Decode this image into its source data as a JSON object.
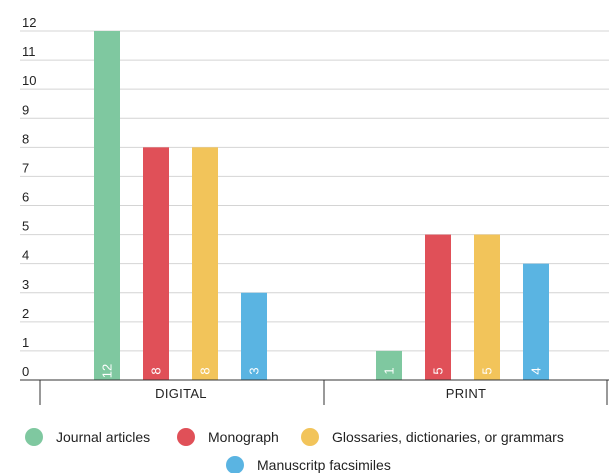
{
  "chart_data": {
    "type": "bar",
    "categories": [
      "DIGITAL",
      "PRINT"
    ],
    "series": [
      {
        "name": "Journal articles",
        "values": [
          12,
          1
        ],
        "color": "#7fc8a0"
      },
      {
        "name": "Monograph",
        "values": [
          8,
          5
        ],
        "color": "#e05058"
      },
      {
        "name": "Glossaries, dictionaries, or grammars",
        "values": [
          8,
          5
        ],
        "color": "#f2c45a"
      },
      {
        "name": "Manuscritp facsimiles",
        "values": [
          3,
          4
        ],
        "color": "#5ab4e2"
      }
    ],
    "yticks": [
      "0",
      "1",
      "2",
      "3",
      "4",
      "5",
      "6",
      "7",
      "8",
      "9",
      "10",
      "11",
      "12"
    ],
    "ylim": [
      0,
      12
    ],
    "grid": true,
    "legend_position": "bottom",
    "data_labels": true
  }
}
